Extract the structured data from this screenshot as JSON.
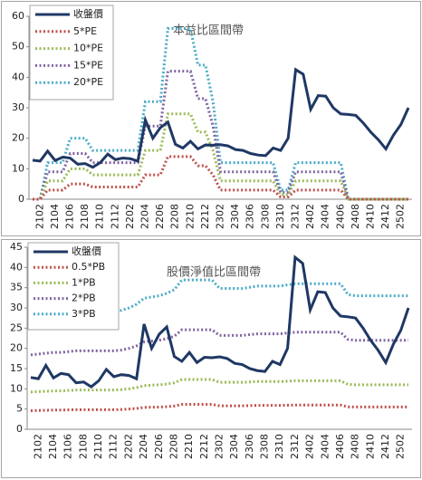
{
  "chart_data": [
    {
      "type": "line",
      "title": "本益比區間帶",
      "categories": [
        null,
        "2102",
        null,
        "2104",
        null,
        "2106",
        null,
        "2108",
        null,
        "2110",
        null,
        "2112",
        null,
        "2202",
        null,
        "2204",
        null,
        "2206",
        null,
        "2208",
        null,
        "2210",
        null,
        "2212",
        null,
        "2302",
        null,
        "2304",
        null,
        "2306",
        null,
        "2308",
        null,
        "2310",
        null,
        "2312",
        null,
        "2402",
        null,
        "2404",
        null,
        "2406",
        null,
        "2408",
        null,
        "2410",
        null,
        "2412",
        null,
        "2502",
        null
      ],
      "ylim": [
        0,
        60
      ],
      "yticks": [
        0,
        10,
        20,
        30,
        40,
        50,
        60
      ],
      "legend": "top-left",
      "series": [
        {
          "name": "收盤價",
          "color": "#1f3864",
          "style": "solid",
          "values": [
            12.8,
            12.5,
            15.8,
            12.7,
            13.8,
            13.5,
            11.5,
            11.7,
            10.5,
            12,
            14.8,
            13,
            13.5,
            13.3,
            12.5,
            26,
            20,
            23.5,
            25.3,
            18,
            16.8,
            19,
            16.5,
            17.8,
            17.7,
            17.9,
            17.5,
            16.3,
            16,
            15,
            14.5,
            14.3,
            16.8,
            16,
            20,
            42.5,
            41,
            29.5,
            34,
            33.8,
            30,
            28,
            27.8,
            27.5,
            25,
            22,
            19.5,
            16.5,
            21,
            24.5,
            30
          ]
        },
        {
          "name": "5*PE",
          "color": "#c0504d",
          "style": "dotted",
          "values": [
            0,
            0,
            3,
            3,
            3,
            5,
            5,
            5,
            4,
            4,
            4,
            4,
            4,
            4,
            4,
            8,
            8,
            8,
            14,
            14,
            14,
            14,
            11,
            11,
            8,
            3,
            3,
            3,
            3,
            3,
            3,
            3,
            3,
            0.75,
            0.75,
            3,
            3,
            3,
            3,
            3,
            3,
            3,
            0,
            0,
            0,
            0,
            0,
            0,
            0,
            0,
            0
          ]
        },
        {
          "name": "10*PE",
          "color": "#9bbb59",
          "style": "dotted",
          "values": [
            0,
            0,
            6,
            6,
            6,
            10,
            10,
            10,
            8,
            8,
            8,
            8,
            8,
            8,
            8,
            16,
            16,
            16,
            28,
            28,
            28,
            28,
            22,
            22,
            16,
            6,
            6,
            6,
            6,
            6,
            6,
            6,
            6,
            1.5,
            1.5,
            6,
            6,
            6,
            6,
            6,
            6,
            6,
            0,
            0,
            0,
            0,
            0,
            0,
            0,
            0,
            0
          ]
        },
        {
          "name": "15*PE",
          "color": "#8064a2",
          "style": "dotted",
          "values": [
            0,
            0,
            9,
            9,
            9,
            15,
            15,
            15,
            12,
            12,
            12,
            12,
            12,
            12,
            12,
            24,
            24,
            24,
            42,
            42,
            42,
            42,
            33,
            33,
            24,
            9,
            9,
            9,
            9,
            9,
            9,
            9,
            9,
            2.25,
            2.25,
            9,
            9,
            9,
            9,
            9,
            9,
            9,
            0,
            0,
            0,
            0,
            0,
            0,
            0,
            0,
            0
          ]
        },
        {
          "name": "20*PE",
          "color": "#4bacc6",
          "style": "dotted",
          "values": [
            0,
            0,
            12,
            12,
            12,
            20,
            20,
            20,
            16,
            16,
            16,
            16,
            16,
            16,
            16,
            32,
            32,
            32,
            56,
            56,
            56,
            56,
            44,
            44,
            32,
            12,
            12,
            12,
            12,
            12,
            12,
            12,
            12,
            3,
            3,
            12,
            12,
            12,
            12,
            12,
            12,
            12,
            0,
            0,
            0,
            0,
            0,
            0,
            0,
            0,
            0
          ]
        }
      ]
    },
    {
      "type": "line",
      "title": "股價淨值比區間帶",
      "categories": [
        null,
        "2102",
        null,
        "2104",
        null,
        "2106",
        null,
        "2108",
        null,
        "2110",
        null,
        "2112",
        null,
        "2202",
        null,
        "2204",
        null,
        "2206",
        null,
        "2208",
        null,
        "2210",
        null,
        "2212",
        null,
        "2302",
        null,
        "2304",
        null,
        "2306",
        null,
        "2308",
        null,
        "2310",
        null,
        "2312",
        null,
        "2402",
        null,
        "2404",
        null,
        "2406",
        null,
        "2408",
        null,
        "2410",
        null,
        "2412",
        null,
        "2502",
        null
      ],
      "ylim": [
        0,
        45
      ],
      "yticks": [
        0,
        5,
        10,
        15,
        20,
        25,
        30,
        35,
        40,
        45
      ],
      "legend": "top-left",
      "series": [
        {
          "name": "收盤價",
          "color": "#1f3864",
          "style": "solid",
          "values": [
            12.8,
            12.5,
            15.8,
            12.7,
            13.8,
            13.5,
            11.5,
            11.7,
            10.5,
            12,
            14.8,
            13,
            13.5,
            13.3,
            12.5,
            26,
            20,
            23.5,
            25.3,
            18,
            16.8,
            19,
            16.5,
            17.8,
            17.7,
            17.9,
            17.5,
            16.3,
            16,
            15,
            14.5,
            14.3,
            16.8,
            16,
            20,
            42.5,
            41,
            29.5,
            34,
            33.8,
            30,
            28,
            27.8,
            27.5,
            25,
            22,
            19.5,
            16.5,
            21,
            24.5,
            30
          ]
        },
        {
          "name": "0.5*PB",
          "color": "#c0504d",
          "style": "dotted",
          "values": [
            4.6,
            4.65,
            4.7,
            4.75,
            4.75,
            4.8,
            4.85,
            4.85,
            4.85,
            4.85,
            4.85,
            4.85,
            4.9,
            5,
            5.15,
            5.4,
            5.45,
            5.5,
            5.6,
            5.75,
            6.15,
            6.15,
            6.15,
            6.15,
            6.15,
            5.8,
            5.8,
            5.8,
            5.8,
            5.85,
            5.9,
            5.9,
            5.9,
            5.9,
            5.95,
            6,
            6,
            6,
            6,
            6,
            6,
            6,
            5.55,
            5.5,
            5.5,
            5.5,
            5.5,
            5.5,
            5.5,
            5.5,
            5.5
          ]
        },
        {
          "name": "1*PB",
          "color": "#9bbb59",
          "style": "dotted",
          "values": [
            9.2,
            9.3,
            9.4,
            9.5,
            9.5,
            9.6,
            9.7,
            9.7,
            9.7,
            9.7,
            9.7,
            9.7,
            9.8,
            10,
            10.3,
            10.8,
            10.9,
            11,
            11.2,
            11.5,
            12.3,
            12.3,
            12.3,
            12.3,
            12.3,
            11.6,
            11.6,
            11.6,
            11.6,
            11.7,
            11.8,
            11.8,
            11.8,
            11.8,
            11.9,
            12,
            12,
            12,
            12,
            12,
            12,
            12,
            11.1,
            11,
            11,
            11,
            11,
            11,
            11,
            11,
            11
          ]
        },
        {
          "name": "2*PB",
          "color": "#8064a2",
          "style": "dotted",
          "values": [
            18.4,
            18.6,
            18.8,
            19,
            19,
            19.2,
            19.4,
            19.4,
            19.4,
            19.4,
            19.4,
            19.4,
            19.6,
            20,
            20.6,
            21.6,
            21.8,
            22,
            22.4,
            23,
            24.6,
            24.6,
            24.6,
            24.6,
            24.6,
            23.2,
            23.2,
            23.2,
            23.2,
            23.4,
            23.6,
            23.6,
            23.6,
            23.6,
            23.8,
            24,
            24,
            24,
            24,
            24,
            24,
            24,
            22.2,
            22,
            22,
            22,
            22,
            22,
            22,
            22,
            22
          ]
        },
        {
          "name": "3*PB",
          "color": "#4bacc6",
          "style": "dotted",
          "values": [
            27.6,
            27.9,
            28.2,
            28.5,
            28.5,
            28.8,
            29.1,
            29.1,
            29.1,
            29.1,
            29.1,
            29.1,
            29.4,
            30,
            30.9,
            32.4,
            32.7,
            33,
            33.6,
            34.5,
            36.9,
            36.9,
            36.9,
            36.9,
            36.9,
            34.8,
            34.8,
            34.8,
            34.8,
            35.1,
            35.4,
            35.4,
            35.4,
            35.4,
            35.7,
            36,
            36,
            36,
            36,
            36,
            36,
            36,
            33.3,
            33,
            33,
            33,
            33,
            33,
            33,
            33,
            33
          ]
        }
      ]
    }
  ]
}
